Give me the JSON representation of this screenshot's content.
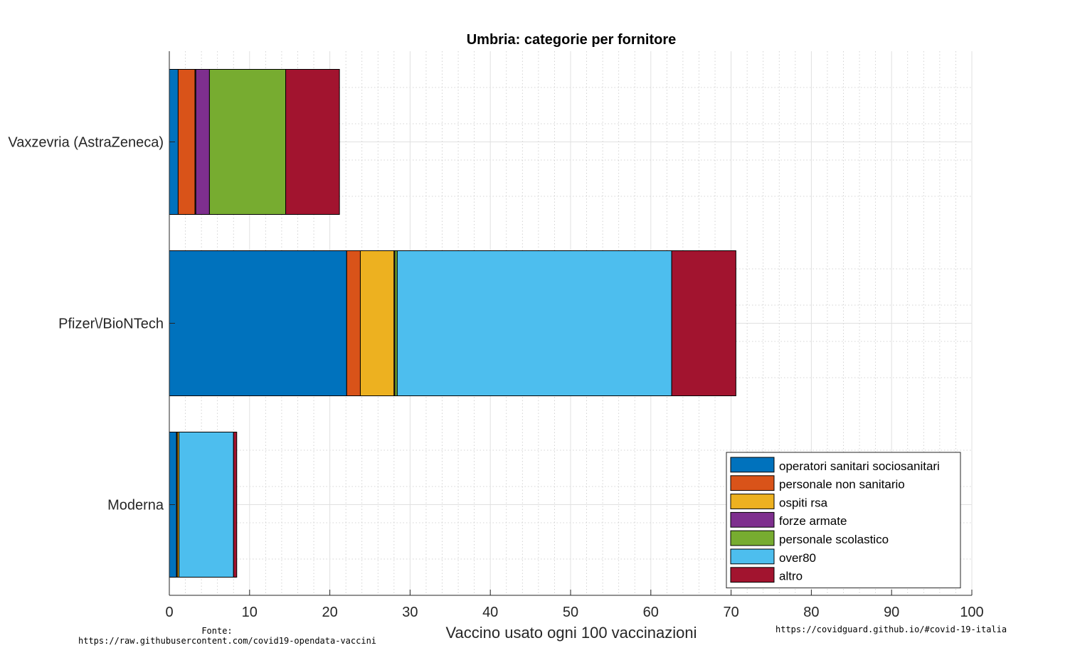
{
  "chart_data": {
    "type": "bar",
    "orientation": "horizontal",
    "stacked": true,
    "title": "Umbria: categorie per fornitore",
    "xlabel": "Vaccino usato ogni 100 vaccinazioni",
    "ylabel": "",
    "xlim": [
      0,
      100
    ],
    "xticks": [
      0,
      10,
      20,
      30,
      40,
      50,
      60,
      70,
      80,
      90,
      100
    ],
    "grid": true,
    "legend_position": "bottom-right",
    "categories": [
      "Vaxzevria (AstraZeneca)",
      "Pfizer\\/BioNTech",
      "Moderna"
    ],
    "series": [
      {
        "name": "operatori sanitari sociosanitari",
        "color": "#0072BD",
        "values": [
          1.1,
          22.1,
          0.9
        ]
      },
      {
        "name": "personale non sanitario",
        "color": "#D95319",
        "values": [
          2.1,
          1.7,
          0.1
        ]
      },
      {
        "name": "ospiti rsa",
        "color": "#EDB120",
        "values": [
          0.1,
          4.2,
          0.2
        ]
      },
      {
        "name": "forze armate",
        "color": "#7E2F8E",
        "values": [
          1.7,
          0.1,
          0.0
        ]
      },
      {
        "name": "personale scolastico",
        "color": "#77AC30",
        "values": [
          9.5,
          0.3,
          0.0
        ]
      },
      {
        "name": "over80",
        "color": "#4DBEEE",
        "values": [
          0.0,
          34.2,
          6.8
        ]
      },
      {
        "name": "altro",
        "color": "#A2142F",
        "values": [
          6.7,
          8.0,
          0.4
        ]
      }
    ]
  },
  "notes": {
    "source_label": "Fonte:",
    "source_url": "https://raw.githubusercontent.com/covid19-opendata-vaccini",
    "site_url": "https://covidguard.github.io/#covid-19-italia"
  }
}
